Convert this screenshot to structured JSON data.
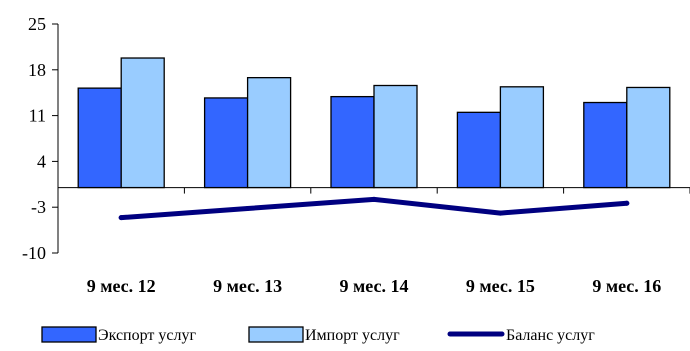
{
  "chart_data": {
    "type": "bar",
    "categories": [
      "9 мес. 12",
      "9 мес. 13",
      "9 мес. 14",
      "9 мес. 15",
      "9 мес. 16"
    ],
    "ylim": [
      -10,
      25
    ],
    "yticks": [
      "25",
      "18",
      "11",
      "4",
      "-3",
      "-10"
    ],
    "ytick_values": [
      25,
      18,
      11,
      4,
      -3,
      -10
    ],
    "title": "",
    "xlabel": "",
    "ylabel": "",
    "grid": false,
    "legend_position": "bottom",
    "series": [
      {
        "name": "Экспорт услуг",
        "type": "bar",
        "color": "#3366FF",
        "values": [
          15.2,
          13.7,
          13.9,
          11.5,
          13.0
        ]
      },
      {
        "name": "Импорт услуг",
        "type": "bar",
        "color": "#99CCFF",
        "values": [
          19.8,
          16.8,
          15.6,
          15.4,
          15.3
        ]
      },
      {
        "name": "Баланс услуг",
        "type": "line",
        "color": "#000080",
        "values": [
          -4.6,
          -3.2,
          -1.8,
          -3.9,
          -2.4
        ]
      }
    ]
  }
}
